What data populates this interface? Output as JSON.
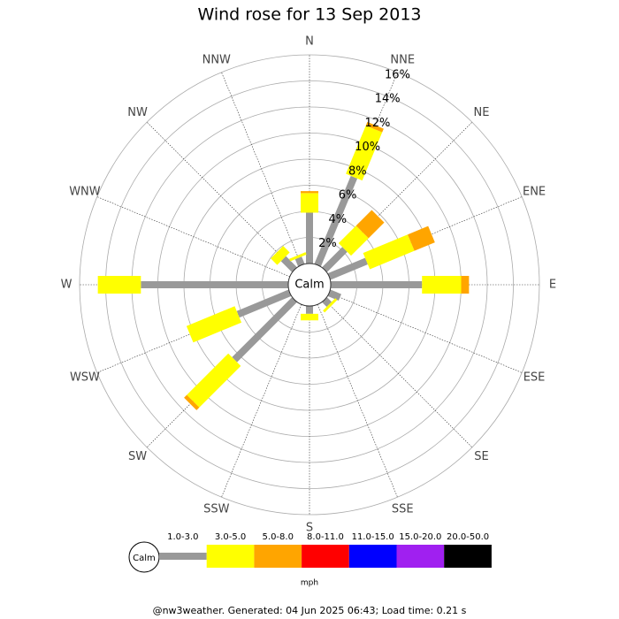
{
  "chart_data": {
    "type": "windrose",
    "title": "Wind rose for 13 Sep 2013",
    "directions": [
      "N",
      "NNE",
      "NE",
      "ENE",
      "E",
      "ESE",
      "SE",
      "SSE",
      "S",
      "SSW",
      "SW",
      "WSW",
      "W",
      "WNW",
      "NW",
      "NNW"
    ],
    "center_label": "Calm",
    "rlim": [
      0,
      16
    ],
    "rticks": [
      {
        "value": 2,
        "label": "2%"
      },
      {
        "value": 4,
        "label": "4%"
      },
      {
        "value": 6,
        "label": "6%"
      },
      {
        "value": 8,
        "label": "8%"
      },
      {
        "value": 10,
        "label": "10%"
      },
      {
        "value": 12,
        "label": "12%"
      },
      {
        "value": 14,
        "label": "14%"
      },
      {
        "value": 16,
        "label": "16%"
      }
    ],
    "series": [
      {
        "name": "1.0-3.0",
        "color": "#999999",
        "values": [
          3.9,
          7.3,
          2.2,
          3.1,
          7.0,
          0.9,
          0.5,
          0,
          0.6,
          0,
          6.5,
          4.3,
          11.3,
          0,
          1.2,
          0.6
        ]
      },
      {
        "name": "3.0-5.0",
        "color": "#ffff00",
        "values": [
          1.5,
          4.0,
          1.9,
          3.7,
          3.0,
          0,
          0.2,
          0,
          0.5,
          0,
          4.5,
          4.0,
          3.3,
          0,
          0.7,
          0.2
        ]
      },
      {
        "name": "5.0-8.0",
        "color": "#ffa500",
        "values": [
          0.15,
          0.3,
          1.7,
          1.7,
          0.6,
          0,
          0,
          0,
          0,
          0,
          0.3,
          0,
          0,
          0,
          0,
          0
        ]
      },
      {
        "name": "8.0-11.0",
        "color": "#ff0000",
        "values": [
          0,
          0,
          0,
          0,
          0,
          0,
          0,
          0,
          0,
          0,
          0,
          0,
          0,
          0,
          0,
          0
        ]
      },
      {
        "name": "11.0-15.0",
        "color": "#0000ff",
        "values": [
          0,
          0,
          0,
          0,
          0,
          0,
          0,
          0,
          0,
          0,
          0,
          0,
          0,
          0,
          0,
          0
        ]
      },
      {
        "name": "15.0-20.0",
        "color": "#a020f0",
        "values": [
          0,
          0,
          0,
          0,
          0,
          0,
          0,
          0,
          0,
          0,
          0,
          0,
          0,
          0,
          0,
          0
        ]
      },
      {
        "name": "20.0-50.0",
        "color": "#000000",
        "values": [
          0,
          0,
          0,
          0,
          0,
          0,
          0,
          0,
          0,
          0,
          0,
          0,
          0,
          0,
          0,
          0
        ]
      }
    ],
    "unit": "mph",
    "footer": "@nw3weather. Generated: 04 Jun 2025 06:43; Load time: 0.21 s"
  }
}
